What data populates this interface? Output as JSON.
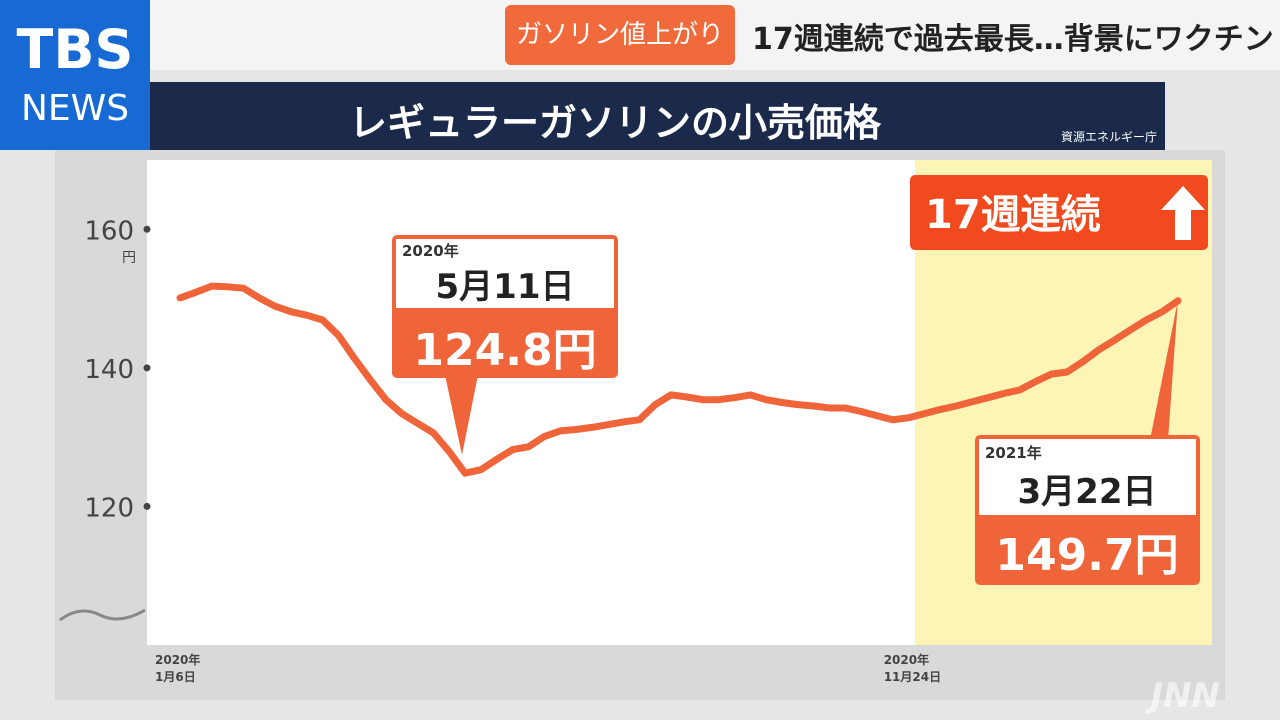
{
  "header": {
    "logo_top": "TBS",
    "logo_bottom": "NEWS",
    "tag": "ガソリン値上がり",
    "headline": "17週連続で過去最長…背景にワクチン",
    "watermark": "JNN"
  },
  "chart_data": {
    "type": "line",
    "title": "レギュラーガソリンの小売価格",
    "source": "資源エネルギー庁",
    "y_unit": "円",
    "badge": "17週連続",
    "color": "#f0643a",
    "ylim": [
      100,
      170
    ],
    "yticks": [
      120,
      140,
      160
    ],
    "categories": [
      "2020年\n1月6日",
      null,
      null,
      null,
      null,
      null,
      null,
      null,
      null,
      null,
      null,
      null,
      null,
      null,
      null,
      null,
      null,
      null,
      null,
      null,
      null,
      null,
      null,
      null,
      null,
      null,
      null,
      null,
      null,
      null,
      null,
      null,
      null,
      null,
      null,
      null,
      null,
      null,
      null,
      null,
      null,
      null,
      null,
      null,
      null,
      null,
      "2020年\n11月24日",
      null,
      null,
      null,
      null,
      null,
      null,
      null,
      null,
      null,
      null,
      null,
      null,
      null,
      null,
      null,
      null,
      null
    ],
    "values": [
      150.1,
      150.9,
      151.8,
      151.7,
      151.5,
      150.1,
      148.9,
      148.1,
      147.6,
      146.9,
      144.7,
      141.4,
      138.3,
      135.4,
      133.4,
      132.0,
      130.6,
      127.9,
      124.8,
      125.3,
      126.8,
      128.2,
      128.6,
      130.1,
      130.9,
      131.1,
      131.4,
      131.8,
      132.2,
      132.5,
      134.7,
      136.1,
      135.8,
      135.4,
      135.4,
      135.7,
      136.1,
      135.4,
      135.0,
      134.7,
      134.5,
      134.2,
      134.2,
      133.7,
      133.1,
      132.5,
      132.8,
      133.4,
      134.0,
      134.5,
      135.1,
      135.7,
      136.3,
      136.8,
      138.0,
      139.1,
      139.4,
      140.9,
      142.6,
      144.0,
      145.5,
      146.9,
      148.1,
      149.7
    ],
    "value_labels": [
      null,
      null,
      null,
      null,
      null,
      null,
      null,
      null,
      null,
      null,
      null,
      null,
      null,
      null,
      null,
      null,
      null,
      null,
      "124.8円",
      null,
      null,
      null,
      null,
      null,
      null,
      null,
      null,
      null,
      null,
      null,
      null,
      null,
      null,
      null,
      null,
      null,
      null,
      null,
      null,
      null,
      null,
      null,
      null,
      null,
      null,
      null,
      null,
      null,
      null,
      null,
      null,
      null,
      null,
      null,
      null,
      null,
      null,
      null,
      null,
      null,
      null,
      null,
      null,
      "149.7円"
    ],
    "annotations": [
      {
        "year": "2020年",
        "date": "5月11日"
      },
      {
        "year": "2021年",
        "date": "3月22日"
      }
    ]
  }
}
